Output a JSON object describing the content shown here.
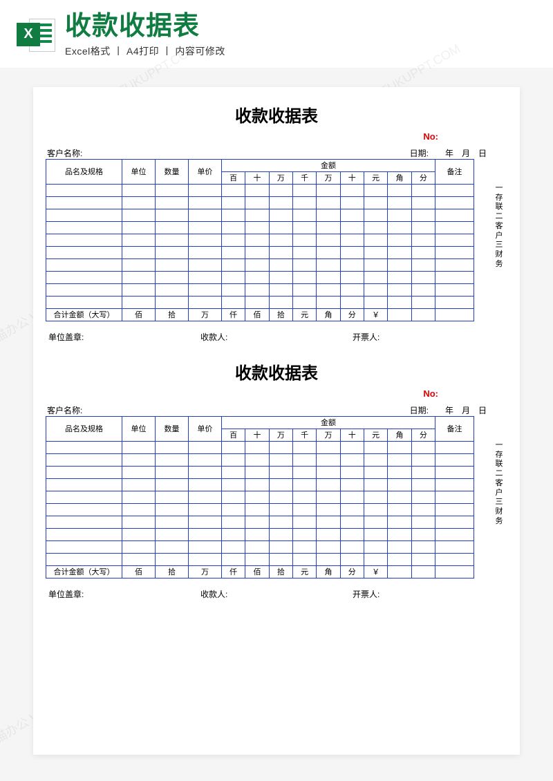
{
  "header": {
    "title": "收款收据表",
    "subtitle": "Excel格式 丨 A4打印 丨 内容可修改",
    "icon_letter": "X"
  },
  "watermark_text": "熊猫办公 WWW.TUKUPPT.COM",
  "receipt": {
    "title": "收款收据表",
    "no_label": "No:",
    "customer_label": "客户名称:",
    "date_label": "日期:",
    "date_y": "年",
    "date_m": "月",
    "date_d": "日",
    "columns": {
      "name": "品名及规格",
      "unit": "单位",
      "qty": "数量",
      "price": "单价",
      "amount": "金额",
      "note": "备注"
    },
    "digit_headers": [
      "百",
      "十",
      "万",
      "千",
      "万",
      "十",
      "元",
      "角",
      "分"
    ],
    "side_note": "一存联 二客户 三财务",
    "total_label": "合计金额（大写）",
    "total_units": [
      "佰",
      "拾",
      "万",
      "仟",
      "佰",
      "拾",
      "元",
      "角",
      "分",
      "￥"
    ],
    "footer": {
      "stamp": "单位盖章:",
      "payee": "收款人:",
      "issuer": "开票人:"
    },
    "data_row_count": 10
  },
  "colors": {
    "border": "#1f3fbf",
    "accent_green": "#107c41",
    "red": "#e20000",
    "page_bg": "#ffffff",
    "body_bg": "#f5f5f5"
  }
}
